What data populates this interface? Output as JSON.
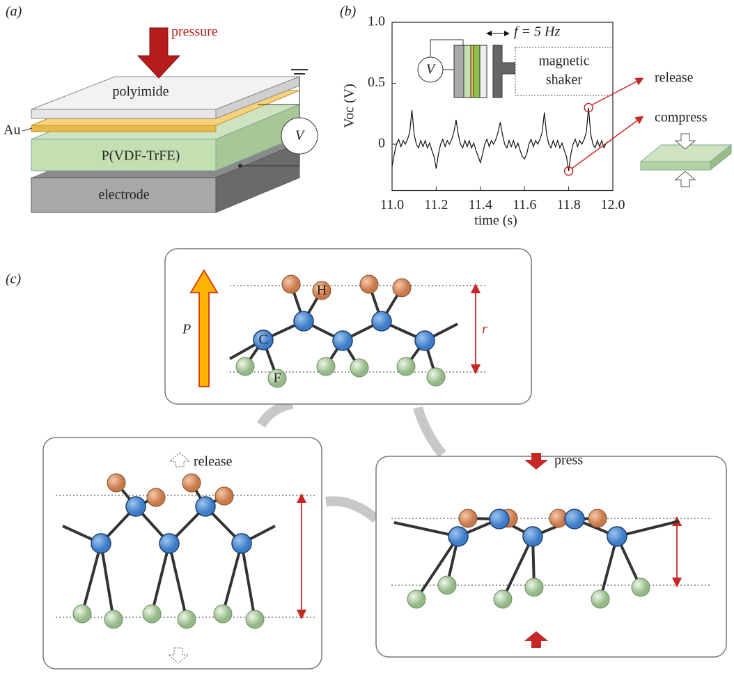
{
  "panel_a": {
    "label": "(a)",
    "pressure": "pressure",
    "layers": [
      "polyimide",
      "Au",
      "P(VDF-TrFE)",
      "electrode"
    ],
    "meter": "V"
  },
  "chart_data": {
    "type": "line",
    "label": "(b)",
    "xlabel": "time (s)",
    "ylabel": "Voc (V)",
    "color": "#111111",
    "xlim": [
      11,
      12
    ],
    "ylim": [
      -0.38,
      1
    ],
    "xticks": [
      {
        "value": 11,
        "label": "11.0"
      },
      11.2,
      11.4,
      11.6,
      11.8,
      {
        "value": 12,
        "label": "12.0"
      }
    ],
    "yticks": [
      0,
      0.5,
      {
        "value": 1,
        "label": "1.0"
      }
    ],
    "annotations": [
      "release",
      "compress"
    ],
    "inset": {
      "meter": "V",
      "frequency": "f = 5 Hz",
      "shaker": [
        "magnetic",
        "shaker"
      ]
    },
    "x": [
      11,
      11.01,
      11.02,
      11.03,
      11.04,
      11.05,
      11.06,
      11.07,
      11.08,
      11.09,
      11.1,
      11.11,
      11.12,
      11.13,
      11.14,
      11.15,
      11.16,
      11.17,
      11.18,
      11.19,
      11.2,
      11.21,
      11.22,
      11.23,
      11.24,
      11.25,
      11.26,
      11.27,
      11.28,
      11.29,
      11.3,
      11.31,
      11.32,
      11.33,
      11.34,
      11.35,
      11.36,
      11.37,
      11.38,
      11.39,
      11.4,
      11.41,
      11.42,
      11.43,
      11.44,
      11.45,
      11.46,
      11.47,
      11.48,
      11.49,
      11.5,
      11.51,
      11.52,
      11.53,
      11.54,
      11.55,
      11.56,
      11.57,
      11.58,
      11.59,
      11.6,
      11.61,
      11.62,
      11.63,
      11.64,
      11.65,
      11.66,
      11.67,
      11.68,
      11.69,
      11.7,
      11.71,
      11.72,
      11.73,
      11.74,
      11.75,
      11.76,
      11.77,
      11.78,
      11.79,
      11.8,
      11.81,
      11.82,
      11.83,
      11.84,
      11.85,
      11.86,
      11.87,
      11.88,
      11.89,
      11.9,
      11.91,
      11.92,
      11.93,
      11.94,
      11.95,
      11.96,
      11.97,
      11.98,
      11.99
    ],
    "values": [
      -0.18,
      -0.08,
      0,
      0.04,
      -0.02,
      0.03,
      0,
      0.04,
      0.1,
      0.28,
      0.08,
      0,
      -0.03,
      0.03,
      -0.02,
      0.03,
      -0.03,
      0.01,
      -0.05,
      -0.1,
      -0.2,
      -0.08,
      0,
      0.04,
      -0.02,
      0.03,
      0,
      0.04,
      0.1,
      0.2,
      0.08,
      0,
      -0.03,
      0.03,
      -0.02,
      0.03,
      -0.03,
      0.01,
      -0.05,
      -0.1,
      -0.15,
      -0.08,
      0,
      0.04,
      -0.02,
      0.03,
      0,
      0.04,
      0.1,
      0.18,
      0.08,
      0,
      -0.03,
      0.03,
      -0.02,
      0.03,
      -0.03,
      0.01,
      -0.05,
      -0.1,
      -0.12,
      -0.08,
      0,
      0.04,
      -0.02,
      0.03,
      0,
      0.04,
      0.1,
      0.26,
      0.08,
      0,
      -0.03,
      0.03,
      -0.02,
      0.03,
      -0.03,
      0.01,
      -0.05,
      -0.1,
      -0.22,
      -0.08,
      0,
      0.04,
      -0.02,
      0.03,
      0,
      0.04,
      0.1,
      0.3,
      0.08,
      0,
      -0.03,
      0.03,
      -0.02,
      0.03,
      -0.03,
      0.01,
      0.02,
      0.03
    ]
  },
  "panel_c": {
    "label": "(c)",
    "polarization": "P",
    "atoms": [
      "H",
      "C",
      "F"
    ],
    "distance": "r",
    "release": "release",
    "press": "press"
  }
}
